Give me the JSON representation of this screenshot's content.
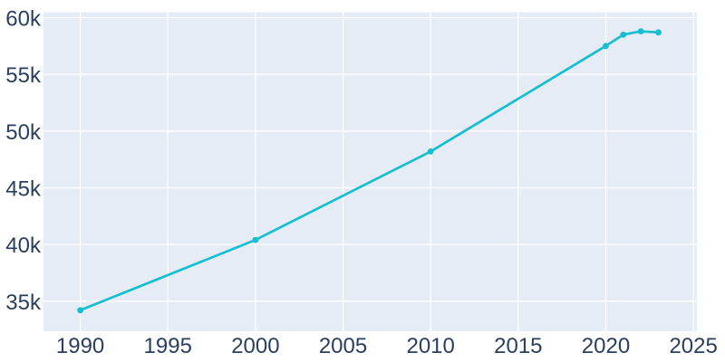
{
  "chart_data": {
    "type": "line",
    "title": "",
    "xlabel": "",
    "ylabel": "",
    "x": [
      1990,
      2000,
      2010,
      2020,
      2021,
      2022,
      2023
    ],
    "y": [
      34200,
      40400,
      48200,
      57500,
      58500,
      58800,
      58700
    ],
    "xlim": [
      1987.9,
      2025.2
    ],
    "ylim": [
      32350,
      60480
    ],
    "xtick_values": [
      1990,
      1995,
      2000,
      2005,
      2010,
      2015,
      2020,
      2025
    ],
    "xtick_labels": [
      "1990",
      "1995",
      "2000",
      "2005",
      "2010",
      "2015",
      "2020",
      "2025"
    ],
    "ytick_values": [
      35000,
      40000,
      45000,
      50000,
      55000,
      60000
    ],
    "ytick_labels": [
      "35k",
      "40k",
      "45k",
      "50k",
      "55k",
      "60k"
    ],
    "grid": true,
    "legend": false,
    "markers": true,
    "colors": {
      "line": "#17becf",
      "plot_background": "#e5ecf6",
      "gridline": "#ffffff",
      "tick_label": "#2a3f5f",
      "figure_background": "#ffffff"
    }
  }
}
